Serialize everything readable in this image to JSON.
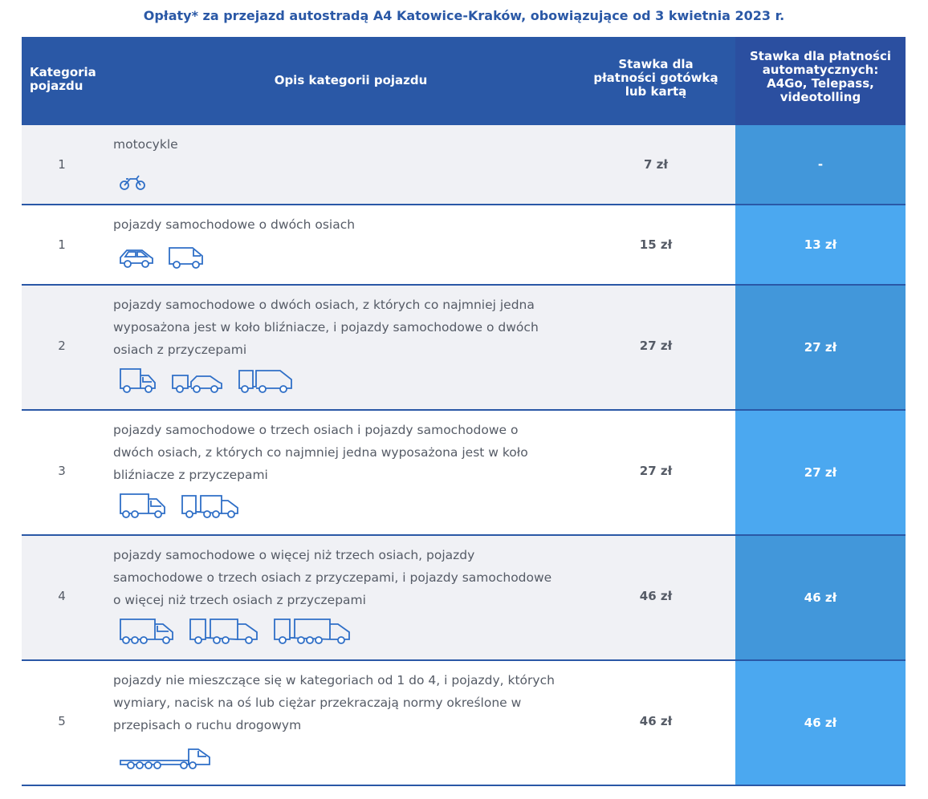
{
  "title": "Opłaty* za przejazd autostradą A4 Katowice-Kraków, obowiązujące od 3 kwietnia 2023 r.",
  "header": {
    "col1": [
      "Kategoria",
      "pojazdu"
    ],
    "col2": "Opis kategorii pojazdu",
    "col3": [
      "Stawka dla",
      "płatności gotówką",
      "lub kartą"
    ],
    "col4": [
      "Stawka dla płatności",
      "automatycznych:",
      "A4Go, Telepass,",
      "videotolling"
    ]
  },
  "rows": [
    {
      "category": "1",
      "desc": [
        "motocykle"
      ],
      "cash": "7 zł",
      "auto": "-",
      "icons": [
        "motorcycle-icon"
      ]
    },
    {
      "category": "1",
      "desc": [
        "pojazdy samochodowe o dwóch osiach"
      ],
      "cash": "15 zł",
      "auto": "13 zł",
      "icons": [
        "car-icon",
        "van-icon"
      ]
    },
    {
      "category": "2",
      "desc": [
        "pojazdy samochodowe o dwóch osiach, z których co najmniej jedna",
        "wyposażona jest w koło bliźniacze, i pojazdy samochodowe o dwóch",
        "osiach z przyczepami"
      ],
      "cash": "27 zł",
      "auto": "27 zł",
      "icons": [
        "small-truck-icon",
        "car-with-trailer-icon",
        "van-with-trailer-icon"
      ]
    },
    {
      "category": "3",
      "desc": [
        "pojazdy samochodowe o trzech osiach i pojazdy samochodowe o",
        "dwóch osiach, z których co najmniej jedna wyposażona jest w koło",
        "bliźniacze z przyczepami"
      ],
      "cash": "27 zł",
      "auto": "27 zł",
      "icons": [
        "three-axle-truck-icon",
        "truck-with-trailer-icon"
      ]
    },
    {
      "category": "4",
      "desc": [
        "pojazdy samochodowe o więcej niż trzech osiach, pojazdy",
        "samochodowe o trzech osiach z przyczepami, i pojazdy samochodowe",
        "o więcej niż trzech osiach z przyczepami"
      ],
      "cash": "46 zł",
      "auto": "46 zł",
      "icons": [
        "four-axle-truck-icon",
        "three-axle-truck-trailer-icon",
        "multi-axle-truck-trailer-icon"
      ]
    },
    {
      "category": "5",
      "desc": [
        "pojazdy nie mieszczące się w kategoriach od 1 do 4, i pojazdy, których",
        "wymiary, nacisk na oś lub ciężar przekraczają normy określone w",
        "przepisach o ruchu drogowym"
      ],
      "cash": "46 zł",
      "auto": "46 zł",
      "icons": [
        "oversize-truck-icon"
      ]
    }
  ],
  "colors": {
    "header_bg": "#2a58a6",
    "auto_dark": "#4297da",
    "auto_light": "#4ba8f0",
    "text": "#555b66"
  }
}
